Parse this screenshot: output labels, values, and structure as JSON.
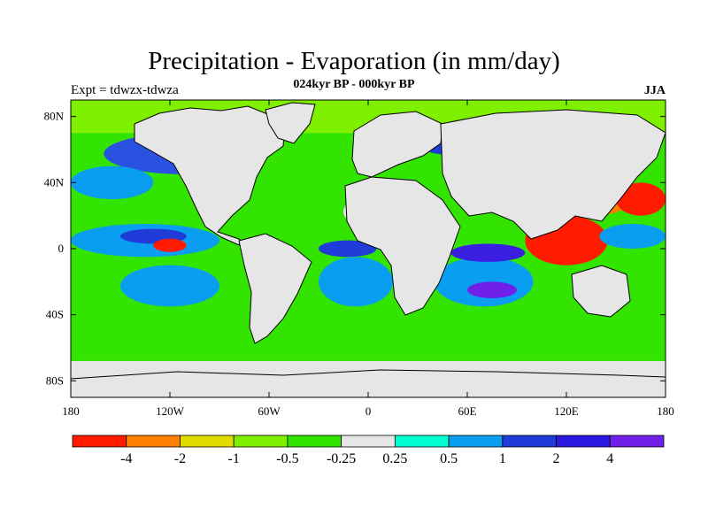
{
  "title": "Precipitation - Evaporation (in mm/day)",
  "subtitle": "024kyr BP - 000kyr BP",
  "left_note": "Expt = tdwzx-tdwza",
  "right_note": "JJA",
  "map": {
    "projection": "cylindrical-equidistant",
    "lon_range": [
      -180,
      180
    ],
    "lat_range": [
      -90,
      90
    ],
    "lat_ticks": [
      {
        "value": 80,
        "label": "80N"
      },
      {
        "value": 40,
        "label": "40N"
      },
      {
        "value": 0,
        "label": "0"
      },
      {
        "value": -40,
        "label": "40S"
      },
      {
        "value": -80,
        "label": "80S"
      }
    ],
    "lon_ticks": [
      {
        "value": -180,
        "label": "180"
      },
      {
        "value": -120,
        "label": "120W"
      },
      {
        "value": -60,
        "label": "60W"
      },
      {
        "value": 0,
        "label": "0"
      },
      {
        "value": 60,
        "label": "60E"
      },
      {
        "value": 120,
        "label": "120E"
      },
      {
        "value": 180,
        "label": "180"
      }
    ],
    "regions": [
      {
        "name": "na-high-lat-band",
        "lon": [
          -160,
          -60
        ],
        "lat": [
          45,
          70
        ],
        "color": "#2a52e0"
      },
      {
        "name": "n-pacific-blue",
        "lon": [
          -180,
          -130
        ],
        "lat": [
          30,
          50
        ],
        "color": "#0a9ef0"
      },
      {
        "name": "tropical-pacific-blue",
        "lon": [
          -180,
          -90
        ],
        "lat": [
          -5,
          15
        ],
        "color": "#0a9ef0"
      },
      {
        "name": "tropical-pacific-dark",
        "lon": [
          -150,
          -110
        ],
        "lat": [
          3,
          12
        ],
        "color": "#1f3cd8"
      },
      {
        "name": "e-pacific-red",
        "lon": [
          -130,
          -110
        ],
        "lat": [
          -2,
          6
        ],
        "color": "#ff1a00"
      },
      {
        "name": "s-pacific-blue",
        "lon": [
          -150,
          -90
        ],
        "lat": [
          -35,
          -10
        ],
        "color": "#0a9ef0"
      },
      {
        "name": "s-atlantic-blue",
        "lon": [
          -30,
          15
        ],
        "lat": [
          -35,
          -5
        ],
        "color": "#0a9ef0"
      },
      {
        "name": "eq-atlantic-dark",
        "lon": [
          -30,
          5
        ],
        "lat": [
          -5,
          5
        ],
        "color": "#1f3cd8"
      },
      {
        "name": "indian-ocean-blue",
        "lon": [
          40,
          100
        ],
        "lat": [
          -35,
          -5
        ],
        "color": "#0a9ef0"
      },
      {
        "name": "indian-ocean-dark",
        "lon": [
          50,
          95
        ],
        "lat": [
          -8,
          3
        ],
        "color": "#3a1fe0"
      },
      {
        "name": "s-indian-violet",
        "lon": [
          60,
          90
        ],
        "lat": [
          -30,
          -20
        ],
        "color": "#7020e8"
      },
      {
        "name": "maritime-red",
        "lon": [
          95,
          145
        ],
        "lat": [
          -10,
          20
        ],
        "color": "#ff1a00"
      },
      {
        "name": "e-asia-orange",
        "lon": [
          110,
          160
        ],
        "lat": [
          20,
          40
        ],
        "color": "#ff7f00"
      },
      {
        "name": "nw-pacific-red",
        "lon": [
          150,
          180
        ],
        "lat": [
          20,
          40
        ],
        "color": "#ff1a00"
      },
      {
        "name": "w-pacific-blue",
        "lon": [
          140,
          180
        ],
        "lat": [
          0,
          15
        ],
        "color": "#0a9ef0"
      },
      {
        "name": "siberia-blue",
        "lon": [
          30,
          120
        ],
        "lat": [
          55,
          70
        ],
        "color": "#1f3cd8"
      },
      {
        "name": "arctic-green",
        "lon": [
          -180,
          180
        ],
        "lat": [
          70,
          90
        ],
        "color": "#7ff000"
      },
      {
        "name": "southern-ocean-green",
        "lon": [
          -180,
          180
        ],
        "lat": [
          -65,
          -45
        ],
        "color": "#33e400"
      },
      {
        "name": "sahara-grey",
        "lon": [
          -15,
          45
        ],
        "lat": [
          10,
          35
        ],
        "color": "#e6e6e6"
      },
      {
        "name": "antarctica-grey",
        "lon": [
          -180,
          180
        ],
        "lat": [
          -90,
          -68
        ],
        "color": "#e6e6e6"
      }
    ]
  },
  "colorbar": {
    "colors": [
      "#ff1a00",
      "#ff7f00",
      "#e1dc00",
      "#7ff000",
      "#33e400",
      "#e6e6e6",
      "#00ffd0",
      "#0a9ef0",
      "#1f3cd8",
      "#2a18e0",
      "#7020e8"
    ],
    "labels": [
      "-4",
      "-2",
      "-1",
      "-0.5",
      "-0.25",
      "0.25",
      "0.5",
      "1",
      "2",
      "4"
    ]
  }
}
